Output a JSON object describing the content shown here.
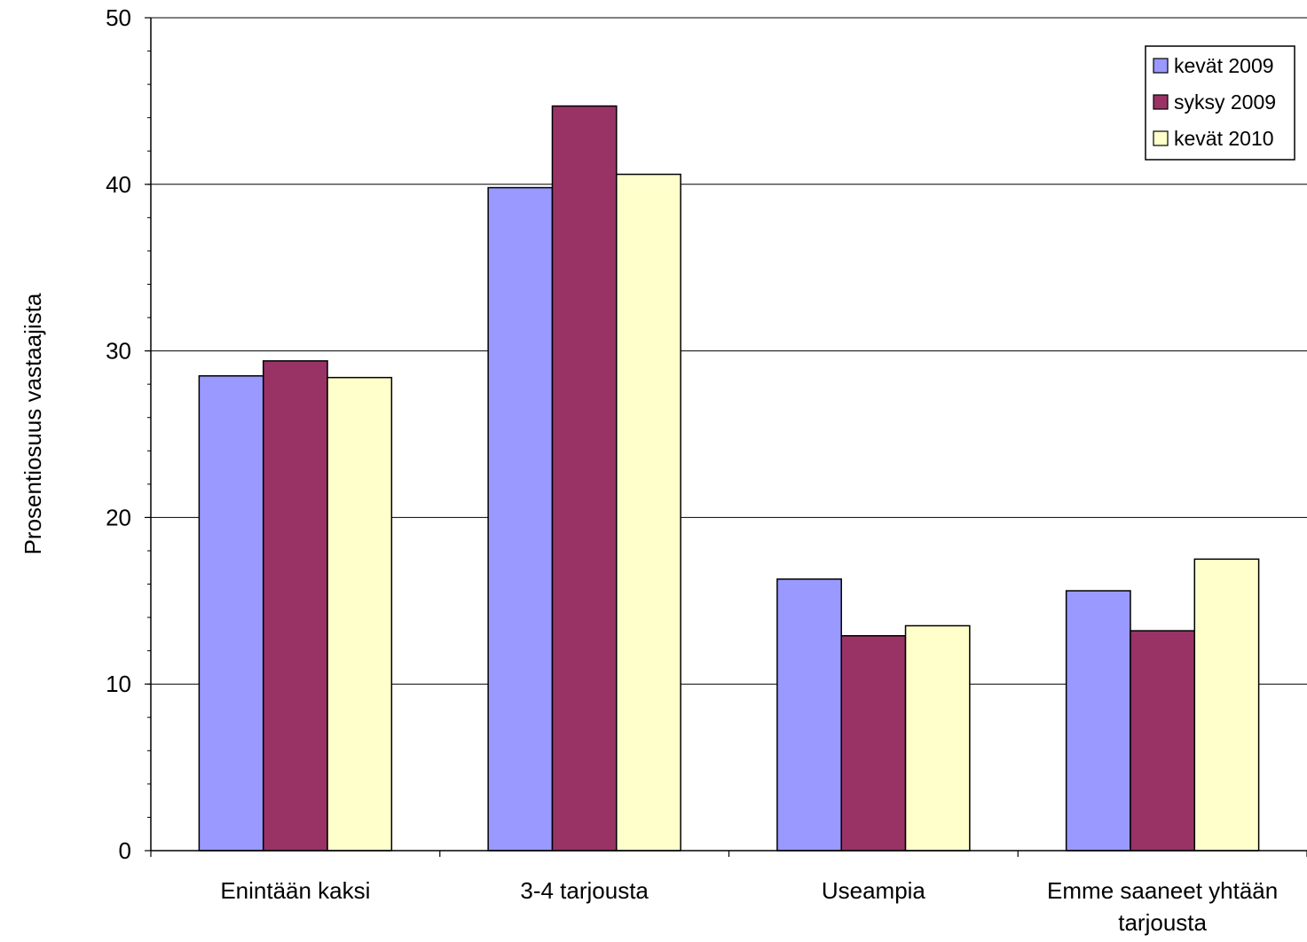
{
  "chart_data": {
    "type": "bar",
    "categories": [
      [
        "Enintään kaksi"
      ],
      [
        "3-4 tarjousta"
      ],
      [
        "Useampia"
      ],
      [
        "Emme saaneet yhtään",
        "tarjousta"
      ]
    ],
    "series": [
      {
        "name": "kevät 2009",
        "color": "#9999ff",
        "values": [
          28.5,
          39.8,
          16.3,
          15.6
        ]
      },
      {
        "name": "syksy 2009",
        "color": "#993366",
        "values": [
          29.4,
          44.7,
          12.9,
          13.2
        ]
      },
      {
        "name": "kevät 2010",
        "color": "#ffffcc",
        "values": [
          28.4,
          40.6,
          13.5,
          17.5
        ]
      }
    ],
    "ylabel": "Prosentiosuus vastaajista",
    "ylim": [
      0,
      50
    ],
    "yticks": [
      0,
      10,
      20,
      30,
      40,
      50
    ],
    "grid": true,
    "legend": "top-right"
  }
}
